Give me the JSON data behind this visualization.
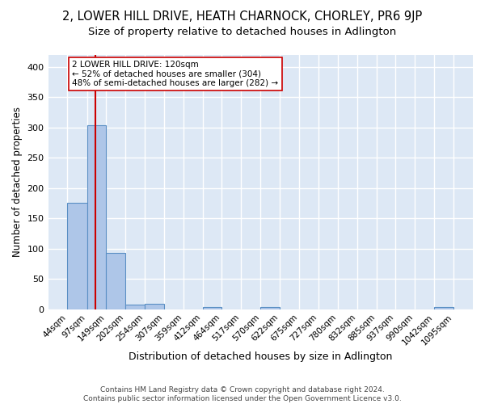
{
  "title": "2, LOWER HILL DRIVE, HEATH CHARNOCK, CHORLEY, PR6 9JP",
  "subtitle": "Size of property relative to detached houses in Adlington",
  "xlabel": "Distribution of detached houses by size in Adlington",
  "ylabel": "Number of detached properties",
  "bin_edges": [
    44,
    97,
    149,
    202,
    254,
    307,
    359,
    412,
    464,
    517,
    570,
    622,
    675,
    727,
    780,
    832,
    885,
    937,
    990,
    1042,
    1095
  ],
  "bar_heights": [
    175,
    304,
    93,
    8,
    9,
    0,
    0,
    3,
    0,
    0,
    4,
    0,
    0,
    0,
    0,
    0,
    0,
    0,
    0,
    3
  ],
  "bar_color": "#aec6e8",
  "bar_edge_color": "#5a8fc4",
  "property_size": 120,
  "vline_color": "#cc0000",
  "annotation_line1": "2 LOWER HILL DRIVE: 120sqm",
  "annotation_line2": "← 52% of detached houses are smaller (304)",
  "annotation_line3": "48% of semi-detached houses are larger (282) →",
  "annotation_box_color": "white",
  "annotation_box_edge": "#cc0000",
  "footer_text": "Contains HM Land Registry data © Crown copyright and database right 2024.\nContains public sector information licensed under the Open Government Licence v3.0.",
  "ylim": [
    0,
    420
  ],
  "yticks": [
    0,
    50,
    100,
    150,
    200,
    250,
    300,
    350,
    400
  ],
  "background_color": "#dde8f5",
  "grid_color": "white",
  "title_fontsize": 10.5,
  "subtitle_fontsize": 9.5,
  "tick_label_fontsize": 7.5,
  "ylabel_fontsize": 8.5,
  "xlabel_fontsize": 9,
  "annotation_fontsize": 7.5
}
